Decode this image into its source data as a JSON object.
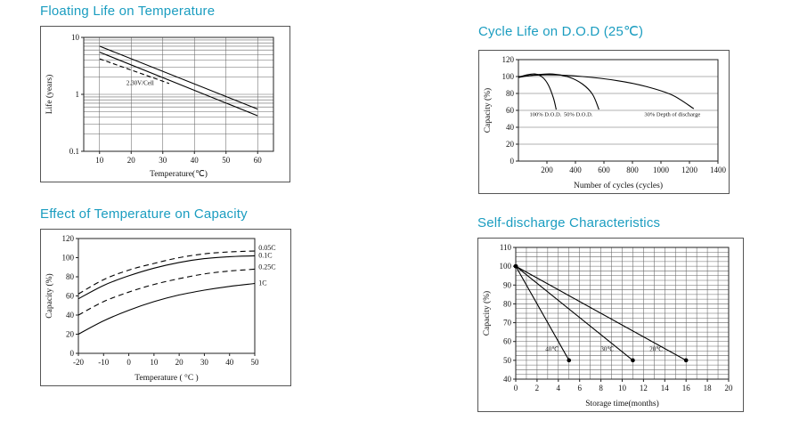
{
  "theme": {
    "accent": "#1b9dc0",
    "line": "#000000",
    "box_border": "#555555"
  },
  "chart_data": [
    {
      "type": "line",
      "title": "Floating Life on Temperature",
      "xlabel": "Temperature(℃)",
      "ylabel": "Life (years)",
      "xlim": [
        5,
        65
      ],
      "ylim": [
        0.1,
        10
      ],
      "y_scale": "log",
      "x_ticks": [
        10,
        20,
        30,
        40,
        50,
        60
      ],
      "y_ticks": [
        0.1,
        1,
        10
      ],
      "y_tick_labels": [
        "0.1",
        "1",
        "10"
      ],
      "margins": {
        "l": 48,
        "r": 18,
        "t": 12,
        "b": 34
      },
      "grid": {
        "x_values": [
          10,
          20,
          30,
          40,
          50,
          60
        ],
        "y_values": [
          0.2,
          0.3,
          0.4,
          0.5,
          0.6,
          0.7,
          0.8,
          0.9,
          1,
          2,
          3,
          4,
          5,
          6,
          7,
          8,
          9
        ]
      },
      "series": [
        {
          "name": "float-life-upper-2.30V",
          "points": [
            [
              10,
              7.0
            ],
            [
              60,
              0.55
            ]
          ]
        },
        {
          "name": "float-life-lower-2.30V",
          "points": [
            [
              10,
              5.5
            ],
            [
              60,
              0.42
            ]
          ]
        },
        {
          "name": "float-life-dashed",
          "dash": "5,3",
          "points": [
            [
              10,
              4.2
            ],
            [
              32,
              1.55
            ]
          ]
        }
      ],
      "annotations": [
        {
          "text": "2.30V/Cell",
          "x": 18.5,
          "y": 1.45,
          "anchor": "start",
          "size": 7
        }
      ]
    },
    {
      "type": "line",
      "title": "Cycle Life on D.O.D (25℃)",
      "xlabel": "Number of cycles (cycles)",
      "ylabel": "Capacity (%)",
      "xlim": [
        0,
        1400
      ],
      "ylim": [
        0,
        120
      ],
      "x_ticks": [
        200,
        400,
        600,
        800,
        1000,
        1200,
        1400
      ],
      "y_ticks": [
        0,
        20,
        40,
        60,
        80,
        100,
        120
      ],
      "margins": {
        "l": 44,
        "r": 12,
        "t": 10,
        "b": 36
      },
      "grid": {
        "y_values": [
          20,
          40,
          60,
          80,
          100
        ]
      },
      "series": [
        {
          "name": "100% D.O.D.",
          "smooth": true,
          "points": [
            [
              0,
              99
            ],
            [
              60,
              102
            ],
            [
              120,
              103
            ],
            [
              170,
              99
            ],
            [
              210,
              90
            ],
            [
              245,
              75
            ],
            [
              265,
              61
            ]
          ]
        },
        {
          "name": "50% D.O.D.",
          "smooth": true,
          "points": [
            [
              0,
              99
            ],
            [
              120,
              102
            ],
            [
              240,
              103
            ],
            [
              360,
              99
            ],
            [
              450,
              91
            ],
            [
              520,
              79
            ],
            [
              565,
              61
            ]
          ]
        },
        {
          "name": "30% Depth of discharge",
          "smooth": true,
          "points": [
            [
              0,
              100
            ],
            [
              200,
              102
            ],
            [
              450,
              100
            ],
            [
              700,
              95
            ],
            [
              900,
              88
            ],
            [
              1080,
              78
            ],
            [
              1230,
              62
            ]
          ]
        }
      ],
      "annotations": [
        {
          "text": "100% D.O.D.",
          "x": 190,
          "y": 53,
          "size": 6.5
        },
        {
          "text": "50% D.O.D.",
          "x": 420,
          "y": 53,
          "size": 6.5
        },
        {
          "text": "30% Depth of  discharge",
          "x": 1080,
          "y": 53,
          "size": 6.5
        }
      ]
    },
    {
      "type": "line",
      "title": "Effect of Temperature on Capacity",
      "xlabel": "Temperature ( °C )",
      "ylabel": "Capacity (%)",
      "xlim": [
        -20,
        50
      ],
      "ylim": [
        0,
        120
      ],
      "x_ticks": [
        -20,
        -10,
        0,
        10,
        20,
        30,
        40,
        50
      ],
      "y_ticks": [
        0,
        20,
        40,
        60,
        80,
        100,
        120
      ],
      "margins": {
        "l": 42,
        "r": 40,
        "t": 10,
        "b": 36
      },
      "series": [
        {
          "name": "0.05C",
          "dash": "6,4",
          "smooth": true,
          "points": [
            [
              -20,
              62
            ],
            [
              -10,
              77
            ],
            [
              0,
              87
            ],
            [
              10,
              94
            ],
            [
              20,
              100
            ],
            [
              30,
              104
            ],
            [
              40,
              106
            ],
            [
              50,
              107
            ]
          ]
        },
        {
          "name": "0.1C",
          "smooth": true,
          "points": [
            [
              -20,
              57
            ],
            [
              -10,
              71
            ],
            [
              0,
              81
            ],
            [
              10,
              89
            ],
            [
              20,
              95
            ],
            [
              30,
              99
            ],
            [
              40,
              101
            ],
            [
              50,
              102
            ]
          ]
        },
        {
          "name": "0.25C",
          "dash": "6,4",
          "smooth": true,
          "points": [
            [
              -20,
              40
            ],
            [
              -10,
              54
            ],
            [
              0,
              64
            ],
            [
              10,
              72
            ],
            [
              20,
              78
            ],
            [
              30,
              83
            ],
            [
              40,
              86
            ],
            [
              50,
              88
            ]
          ]
        },
        {
          "name": "1C",
          "smooth": true,
          "points": [
            [
              -20,
              20
            ],
            [
              -10,
              34
            ],
            [
              0,
              45
            ],
            [
              10,
              54
            ],
            [
              20,
              61
            ],
            [
              30,
              66
            ],
            [
              40,
              70
            ],
            [
              50,
              73
            ]
          ]
        }
      ],
      "annotations": [
        {
          "text": "0.05C",
          "x": 51.5,
          "y": 108,
          "anchor": "start",
          "size": 8
        },
        {
          "text": "0.1C",
          "x": 51.5,
          "y": 100,
          "anchor": "start",
          "size": 8
        },
        {
          "text": "0.25C",
          "x": 51.5,
          "y": 88,
          "anchor": "start",
          "size": 8
        },
        {
          "text": "1C",
          "x": 51.5,
          "y": 71,
          "anchor": "start",
          "size": 8
        }
      ]
    },
    {
      "type": "line",
      "title": "Self-discharge Characteristics",
      "xlabel": "Storage time(months)",
      "ylabel": "Capacity (%)",
      "xlim": [
        0,
        20
      ],
      "ylim": [
        40,
        110
      ],
      "x_ticks": [
        0,
        2,
        4,
        6,
        8,
        10,
        12,
        14,
        16,
        18,
        20
      ],
      "y_ticks": [
        40,
        50,
        60,
        70,
        80,
        90,
        100,
        110
      ],
      "margins": {
        "l": 42,
        "r": 16,
        "t": 10,
        "b": 36
      },
      "grid": {
        "x_step": 1,
        "y_step": 2.5
      },
      "series": [
        {
          "name": "40℃",
          "markers": true,
          "points": [
            [
              0,
              100
            ],
            [
              5,
              50
            ]
          ]
        },
        {
          "name": "30℃",
          "markers": true,
          "points": [
            [
              0,
              100
            ],
            [
              11,
              50
            ]
          ]
        },
        {
          "name": "20℃",
          "markers": true,
          "points": [
            [
              0,
              100
            ],
            [
              16,
              50
            ]
          ]
        }
      ],
      "annotations": [
        {
          "text": "40℃",
          "x": 3.4,
          "y": 55,
          "size": 7
        },
        {
          "text": "30℃",
          "x": 8.6,
          "y": 55,
          "size": 7
        },
        {
          "text": "20℃",
          "x": 13.2,
          "y": 55,
          "size": 7
        }
      ]
    }
  ]
}
